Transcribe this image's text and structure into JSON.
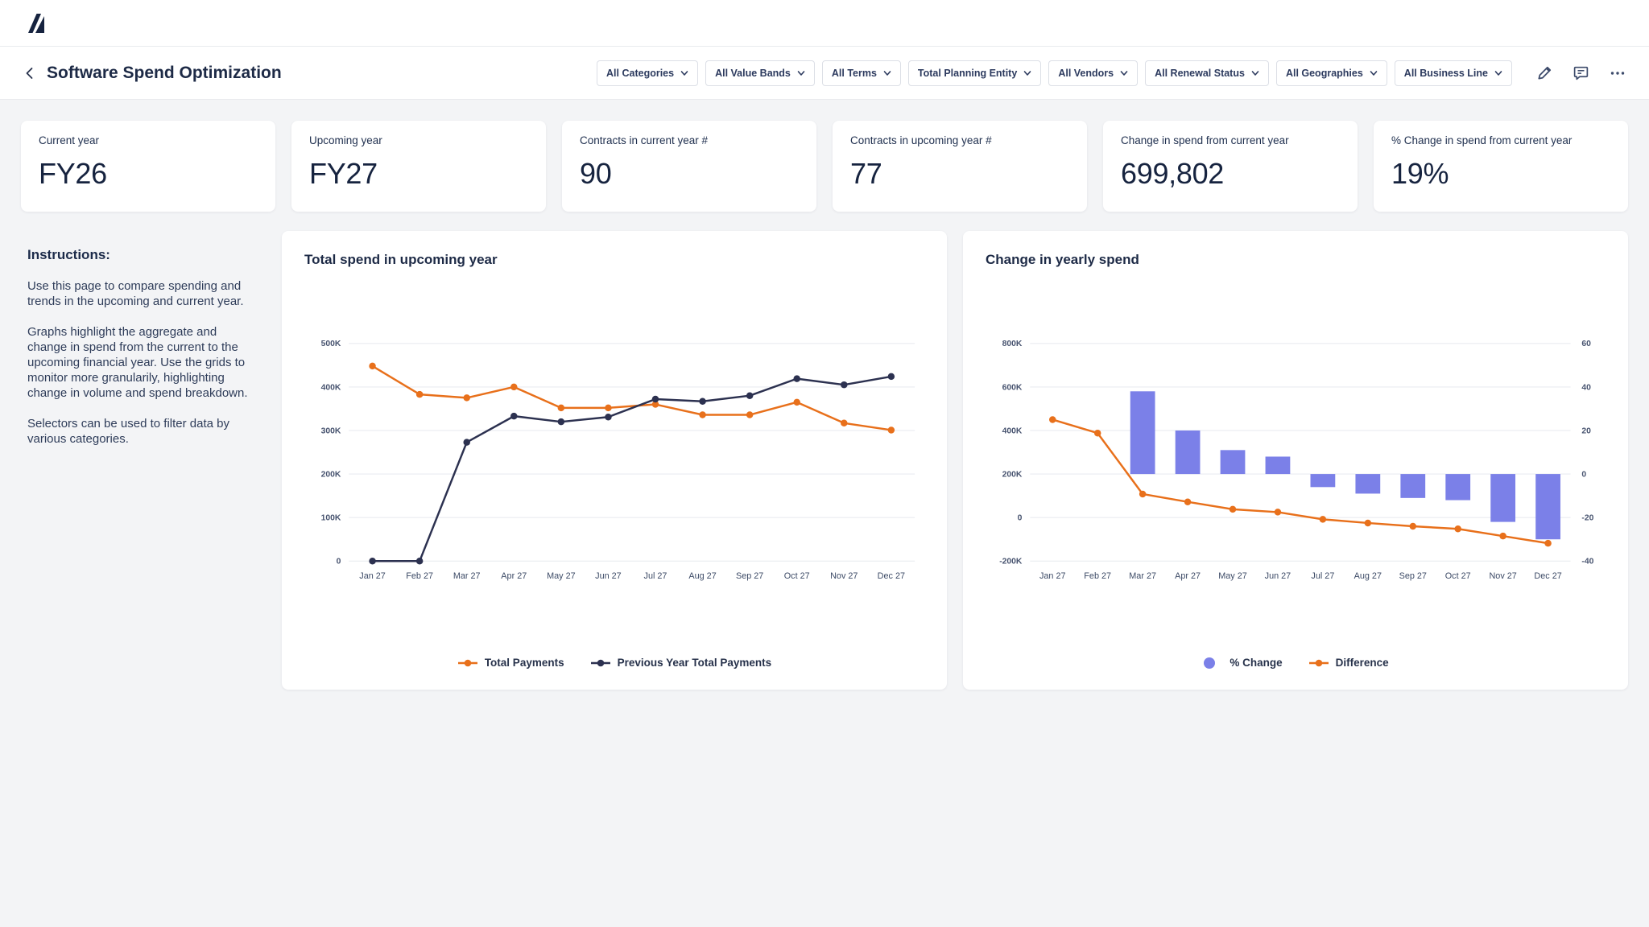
{
  "app": {
    "logo_name": "anaplan-mark"
  },
  "header": {
    "title": "Software Spend Optimization",
    "filters": [
      "All Categories",
      "All Value Bands",
      "All Terms",
      "Total Planning Entity",
      "All Vendors",
      "All Renewal Status",
      "All Geographies",
      "All Business Line"
    ],
    "actions": [
      {
        "name": "edit",
        "icon": "pencil-icon"
      },
      {
        "name": "comments",
        "icon": "comment-icon"
      },
      {
        "name": "more",
        "icon": "ellipsis-icon"
      }
    ]
  },
  "kpis": [
    {
      "label": "Current year",
      "value": "FY26"
    },
    {
      "label": "Upcoming year",
      "value": "FY27"
    },
    {
      "label": "Contracts in current year #",
      "value": "90"
    },
    {
      "label": "Contracts in upcoming year #",
      "value": "77"
    },
    {
      "label": "Change in spend from current year",
      "value": "699,802"
    },
    {
      "label": "% Change in spend from current year",
      "value": "19%"
    }
  ],
  "instructions": {
    "heading": "Instructions:",
    "paragraphs": [
      "Use this page to compare spending and trends in the upcoming and current year.",
      "Graphs highlight the aggregate and change in spend from the current to the upcoming financial year. Use the grids to monitor more granularily, highlighting change in volume and spend breakdown.",
      "Selectors can be used to filter data by various categories."
    ]
  },
  "colors": {
    "orange": "#e8701b",
    "dark": "#2c3150",
    "purple": "#7b80e8",
    "grid": "#edeff3",
    "axis_text": "#47536f"
  },
  "chart_data": [
    {
      "type": "line",
      "title": "Total spend in upcoming year",
      "x": [
        "Jan 27",
        "Feb 27",
        "Mar 27",
        "Apr 27",
        "May 27",
        "Jun 27",
        "Jul 27",
        "Aug 27",
        "Sep 27",
        "Oct 27",
        "Nov 27",
        "Dec 27"
      ],
      "ylim": [
        0,
        500000
      ],
      "ytick_step": 100000,
      "ytick_format": "K",
      "grid": true,
      "legend_position": "bottom",
      "series": [
        {
          "name": "Total Payments",
          "color_key": "orange",
          "values": [
            448000,
            383000,
            375000,
            400000,
            352000,
            352000,
            360000,
            336000,
            336000,
            365000,
            317000,
            301000
          ]
        },
        {
          "name": "Previous Year Total Payments",
          "color_key": "dark",
          "values": [
            0,
            0,
            273000,
            333000,
            320000,
            331000,
            372000,
            367000,
            380000,
            419000,
            405000,
            424000
          ]
        }
      ]
    },
    {
      "type": "combo",
      "title": "Change in yearly spend",
      "x": [
        "Jan 27",
        "Feb 27",
        "Mar 27",
        "Apr 27",
        "May 27",
        "Jun 27",
        "Jul 27",
        "Aug 27",
        "Sep 27",
        "Oct 27",
        "Nov 27",
        "Dec 27"
      ],
      "left_ylim": [
        -200000,
        800000
      ],
      "left_ytick_step": 200000,
      "left_ytick_format": "K",
      "right_ylim": [
        -40,
        60
      ],
      "right_ytick_step": 20,
      "grid": true,
      "legend_position": "bottom",
      "bar_series": {
        "name": "% Change",
        "axis": "right",
        "color_key": "purple",
        "values": [
          null,
          null,
          38,
          20,
          11,
          8,
          -6,
          -9,
          -11,
          -12,
          -22,
          -30
        ]
      },
      "line_series": {
        "name": "Difference",
        "axis": "left",
        "color_key": "orange",
        "values": [
          450000,
          388000,
          108000,
          72000,
          38000,
          25000,
          -8000,
          -25000,
          -40000,
          -52000,
          -85000,
          -118000
        ]
      }
    }
  ]
}
